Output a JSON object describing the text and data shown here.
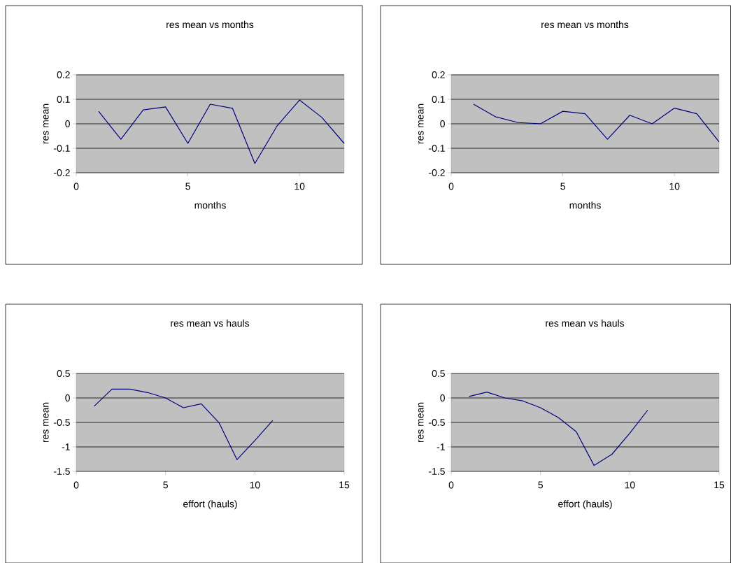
{
  "chart_data": [
    {
      "type": "line",
      "title": "res mean vs months",
      "xlabel": "months",
      "ylabel": "res mean",
      "color": "#000080",
      "grid": "y",
      "xlim": [
        0,
        12
      ],
      "xticks": [
        0,
        5,
        10
      ],
      "ylim": [
        -0.2,
        0.2
      ],
      "yticks": [
        -0.2,
        -0.1,
        0,
        0.1,
        0.2
      ],
      "x": [
        1,
        2,
        3,
        4,
        5,
        6,
        7,
        8,
        9,
        10,
        11,
        12
      ],
      "values": [
        0.051,
        -0.063,
        0.057,
        0.069,
        -0.08,
        0.08,
        0.063,
        -0.162,
        -0.008,
        0.097,
        0.026,
        -0.08
      ]
    },
    {
      "type": "line",
      "title": "res mean vs months",
      "xlabel": "months",
      "ylabel": "res mean",
      "color": "#000080",
      "grid": "y",
      "xlim": [
        0,
        12
      ],
      "xticks": [
        0,
        5,
        10
      ],
      "ylim": [
        -0.2,
        0.2
      ],
      "yticks": [
        -0.2,
        -0.1,
        0,
        0.1,
        0.2
      ],
      "x": [
        1,
        2,
        3,
        4,
        5,
        6,
        7,
        8,
        9,
        10,
        11,
        12
      ],
      "values": [
        0.08,
        0.028,
        0.005,
        0,
        0.051,
        0.041,
        -0.063,
        0.035,
        0,
        0.064,
        0.041,
        -0.074
      ]
    },
    {
      "type": "line",
      "title": "res mean vs hauls",
      "xlabel": "effort (hauls)",
      "ylabel": "res mean",
      "color": "#000080",
      "grid": "y",
      "xlim": [
        0,
        15
      ],
      "xticks": [
        0,
        5,
        10,
        15
      ],
      "ylim": [
        -1.5,
        0.5
      ],
      "yticks": [
        -1.5,
        -1,
        -0.5,
        0,
        0.5
      ],
      "x": [
        1,
        2,
        3,
        4,
        5,
        6,
        7,
        8,
        9,
        10,
        11
      ],
      "values": [
        -0.17,
        0.18,
        0.18,
        0.11,
        0,
        -0.2,
        -0.12,
        -0.51,
        -1.26,
        -0.87,
        -0.46
      ]
    },
    {
      "type": "line",
      "title": "res mean vs hauls",
      "xlabel": "effort (hauls)",
      "ylabel": "res mean",
      "color": "#000080",
      "grid": "y",
      "xlim": [
        0,
        15
      ],
      "xticks": [
        0,
        5,
        10,
        15
      ],
      "ylim": [
        -1.5,
        0.5
      ],
      "yticks": [
        -1.5,
        -1,
        -0.5,
        0,
        0.5
      ],
      "x": [
        1,
        2,
        3,
        4,
        5,
        6,
        7,
        8,
        9,
        10,
        11
      ],
      "values": [
        0.03,
        0.12,
        0,
        -0.06,
        -0.2,
        -0.4,
        -0.69,
        -1.38,
        -1.15,
        -0.72,
        -0.25
      ]
    }
  ]
}
